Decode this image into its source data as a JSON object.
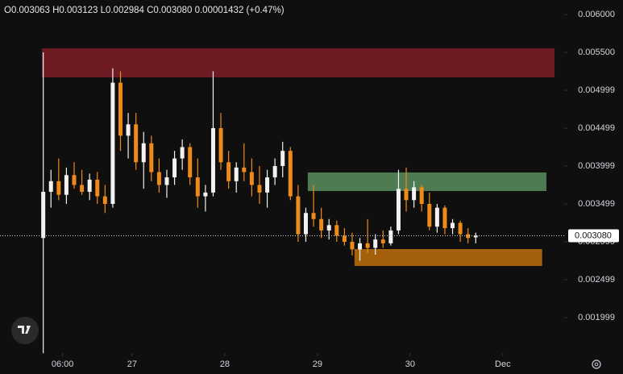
{
  "chart_data": {
    "type": "candlestick",
    "legend_text": "O0.003063 H0.003123 L0.002984 C0.003080 0.00001432 (+0.47%)",
    "x": [
      1,
      3,
      5,
      7,
      9,
      11,
      13,
      15,
      17,
      19,
      21,
      23,
      25,
      27,
      29,
      31,
      33,
      35,
      37,
      39,
      41,
      43,
      45,
      47,
      49,
      51,
      53,
      55,
      57,
      59,
      61,
      63,
      65,
      67,
      69,
      71,
      73,
      75,
      77,
      79,
      81,
      83,
      85,
      87,
      89,
      91,
      93,
      95,
      97,
      99,
      101,
      103,
      105,
      107,
      109,
      111,
      113
    ],
    "open": [
      0.00305,
      0.00366,
      0.0038,
      0.00362,
      0.00388,
      0.00375,
      0.00366,
      0.00382,
      0.0036,
      0.0035,
      0.0051,
      0.0044,
      0.00455,
      0.00405,
      0.0043,
      0.00392,
      0.00375,
      0.00385,
      0.0041,
      0.00425,
      0.00385,
      0.0036,
      0.00365,
      0.0045,
      0.00405,
      0.0038,
      0.00398,
      0.00392,
      0.00375,
      0.00365,
      0.00385,
      0.004,
      0.0042,
      0.0036,
      0.0031,
      0.00338,
      0.0033,
      0.00315,
      0.00322,
      0.00308,
      0.003,
      0.0029,
      0.00298,
      0.00292,
      0.00303,
      0.00298,
      0.00315,
      0.0037,
      0.00355,
      0.00372,
      0.0035,
      0.0032,
      0.00345,
      0.00318,
      0.00325,
      0.0031,
      0.00306
    ],
    "high": [
      0.0055,
      0.00395,
      0.0041,
      0.00398,
      0.00405,
      0.00395,
      0.0039,
      0.00392,
      0.00375,
      0.00529,
      0.00525,
      0.0047,
      0.0047,
      0.00445,
      0.0044,
      0.0041,
      0.00395,
      0.0042,
      0.00435,
      0.0043,
      0.0041,
      0.00375,
      0.00525,
      0.0047,
      0.0042,
      0.00405,
      0.0043,
      0.0041,
      0.004,
      0.00395,
      0.0041,
      0.00432,
      0.00425,
      0.00375,
      0.00345,
      0.00375,
      0.00345,
      0.0033,
      0.00328,
      0.00318,
      0.00312,
      0.00305,
      0.0033,
      0.0031,
      0.00315,
      0.0032,
      0.00395,
      0.00398,
      0.0038,
      0.00375,
      0.00365,
      0.0035,
      0.00348,
      0.0033,
      0.00328,
      0.00318,
      0.00312
    ],
    "low": [
      0.00153,
      0.00345,
      0.00355,
      0.0035,
      0.0037,
      0.00362,
      0.00355,
      0.0035,
      0.00338,
      0.00345,
      0.0042,
      0.0041,
      0.00395,
      0.0037,
      0.0038,
      0.00365,
      0.00358,
      0.00375,
      0.00395,
      0.00375,
      0.00345,
      0.0034,
      0.0036,
      0.00395,
      0.0037,
      0.00365,
      0.0038,
      0.0036,
      0.0035,
      0.00345,
      0.00375,
      0.00385,
      0.00355,
      0.003,
      0.003,
      0.0032,
      0.00305,
      0.00303,
      0.003,
      0.00295,
      0.00282,
      0.00275,
      0.00285,
      0.00283,
      0.00292,
      0.00295,
      0.0031,
      0.0034,
      0.00345,
      0.0034,
      0.00315,
      0.00312,
      0.0031,
      0.0031,
      0.003,
      0.00298,
      0.00298
    ],
    "close": [
      0.00366,
      0.0038,
      0.00362,
      0.00388,
      0.00375,
      0.00366,
      0.00382,
      0.0036,
      0.0035,
      0.0051,
      0.0044,
      0.00455,
      0.00405,
      0.0043,
      0.00392,
      0.00375,
      0.00385,
      0.0041,
      0.00425,
      0.00385,
      0.0036,
      0.00365,
      0.0045,
      0.00405,
      0.0038,
      0.00398,
      0.00392,
      0.00375,
      0.00365,
      0.00385,
      0.004,
      0.0042,
      0.0036,
      0.0031,
      0.00338,
      0.0033,
      0.00315,
      0.00322,
      0.00308,
      0.003,
      0.0029,
      0.00298,
      0.00292,
      0.00303,
      0.00298,
      0.00315,
      0.0037,
      0.00355,
      0.00372,
      0.0035,
      0.0032,
      0.00345,
      0.00318,
      0.00325,
      0.0031,
      0.00305,
      0.00308
    ],
    "up_color": "#f2f2f2",
    "down_color": "#ec8a1c",
    "zones": [
      {
        "x": [
          0.63,
          133.4
        ],
        "y": [
          0.00517,
          0.005553
        ],
        "color": "#6e1b23"
      },
      {
        "x": [
          69.5,
          131.3
        ],
        "y": [
          0.00367,
          0.003915
        ],
        "color": "#4e7b52"
      },
      {
        "x": [
          81.6,
          130.2
        ],
        "y": [
          0.002681,
          0.002904
        ],
        "color": "#a5600c"
      }
    ],
    "last_price": {
      "value": 0.00308,
      "label": "0.003080"
    },
    "xlim": [
      -10.2,
      135.9
    ],
    "xticks": [
      {
        "value": 6,
        "label": "06:00"
      },
      {
        "value": 24,
        "label": "27"
      },
      {
        "value": 48,
        "label": "28"
      },
      {
        "value": 72,
        "label": "29"
      },
      {
        "value": 96,
        "label": "30"
      },
      {
        "value": 120,
        "label": "Dec"
      }
    ],
    "ylim": [
      0.001532,
      0.006191
    ],
    "yticks": [
      {
        "value": 0.006,
        "label": "0.006000"
      },
      {
        "value": 0.0055,
        "label": "0.005500"
      },
      0.004999,
      0.004499,
      0.003999,
      0.003499,
      0.002999,
      0.002499,
      0.001999
    ],
    "grid": false
  }
}
